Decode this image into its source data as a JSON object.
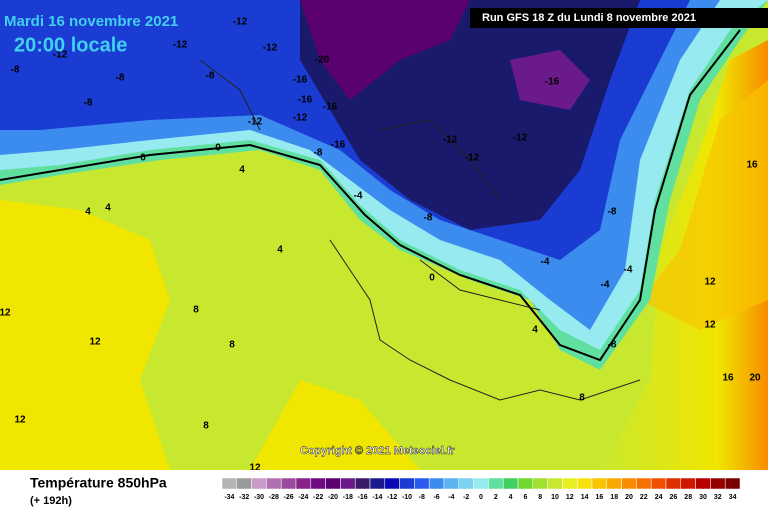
{
  "map": {
    "header": {
      "date": "Mardi 16 novembre 2021",
      "time": "20:00 locale",
      "run": "Run GFS 18 Z du Lundi 8 novembre 2021"
    },
    "copyright": "Copyright © 2021 Meteociel.fr",
    "legend": {
      "title": "Température 850hPa",
      "lead": "(+ 192h)",
      "ticks": [
        -34,
        -32,
        -30,
        -28,
        -26,
        -24,
        -22,
        -20,
        -18,
        -16,
        -14,
        -12,
        -10,
        -8,
        -6,
        -4,
        -2,
        0,
        2,
        4,
        6,
        8,
        10,
        12,
        14,
        16,
        18,
        20,
        22,
        24,
        26,
        28,
        30,
        32,
        34
      ],
      "colors": [
        "#b4b4b4",
        "#9a9a9a",
        "#c89ac8",
        "#b070b0",
        "#9a4a9a",
        "#882288",
        "#700a80",
        "#5a0070",
        "#6a1a8a",
        "#3c1a6a",
        "#1a1a8c",
        "#0a0ab4",
        "#1a3cd2",
        "#2a5aee",
        "#3c8cf0",
        "#5ab4f0",
        "#7ad2f0",
        "#96eaf0",
        "#60e0a0",
        "#40d060",
        "#70d830",
        "#a0e030",
        "#c8e830",
        "#e8ee20",
        "#f8e010",
        "#f8c400",
        "#f8a800",
        "#f88c00",
        "#f87000",
        "#f05000",
        "#e03000",
        "#d01800",
        "#b80000",
        "#980000",
        "#780000"
      ]
    },
    "contour_labels": [
      -8,
      -12,
      -8,
      -8,
      -12,
      -8,
      -12,
      -12,
      -16,
      -16,
      -20,
      -16,
      -12,
      -12,
      -16,
      -8,
      0,
      0,
      4,
      4,
      4,
      -4,
      -8,
      -12,
      -12,
      -12,
      -16,
      -8,
      -4,
      -4,
      0,
      4,
      8,
      8,
      8,
      12,
      12,
      12,
      16,
      12,
      16,
      20,
      12,
      4,
      8,
      12,
      -4,
      -8
    ]
  }
}
